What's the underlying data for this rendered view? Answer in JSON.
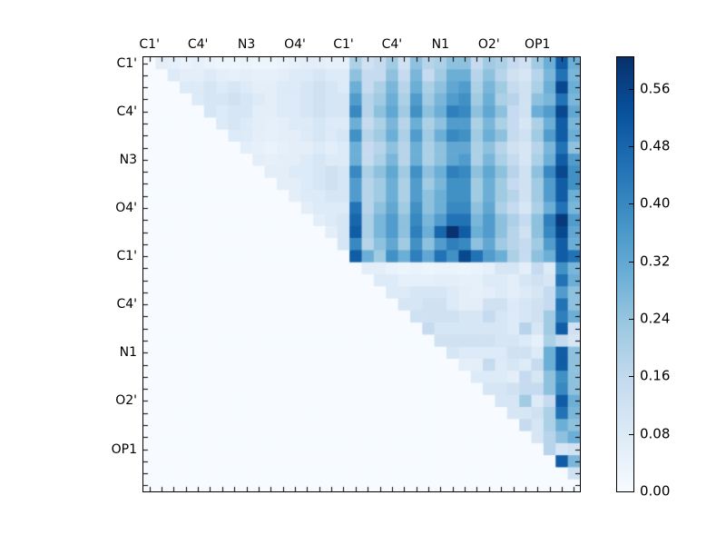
{
  "figure": {
    "background": "#ffffff"
  },
  "axes": {
    "x_tick_labels": [
      "C1'",
      "C4'",
      "N3",
      "O4'",
      "C1'",
      "C4'",
      "N1",
      "O2'",
      "OP1"
    ],
    "y_tick_labels": [
      "C1'",
      "C4'",
      "N3",
      "O4'",
      "C1'",
      "C4'",
      "N1",
      "O2'",
      "OP1"
    ],
    "label_every_n_cells": 4,
    "n_cells": 36
  },
  "colorbar": {
    "tick_labels": [
      "0.00",
      "0.08",
      "0.16",
      "0.24",
      "0.32",
      "0.40",
      "0.48",
      "0.56"
    ],
    "vmin": 0.0,
    "vmax": 0.604,
    "colormap": [
      "#f7fbff",
      "#deebf7",
      "#c6dbef",
      "#9ecae1",
      "#6baed6",
      "#4292c6",
      "#2171b5",
      "#08519c",
      "#08306b"
    ]
  },
  "chart_data": {
    "type": "heatmap",
    "title": "",
    "xlabel": "",
    "ylabel": "",
    "x_categories": [
      "C1'",
      "C4'",
      "N3",
      "O4'",
      "C1'",
      "C4'",
      "N1",
      "O2'",
      "OP1"
    ],
    "y_categories": [
      "C1'",
      "C4'",
      "N3",
      "O4'",
      "C1'",
      "C4'",
      "N1",
      "O2'",
      "OP1"
    ],
    "matrix_size": 36,
    "vmin": 0.0,
    "vmax": 0.604,
    "values": [
      [
        0,
        0.06,
        0.05,
        0.04,
        0.05,
        0.04,
        0.03,
        0.03,
        0.04,
        0.03,
        0.03,
        0.04,
        0.05,
        0.06,
        0.06,
        0.05,
        0.05,
        0.2,
        0.12,
        0.15,
        0.22,
        0.12,
        0.25,
        0.18,
        0.2,
        0.25,
        0.25,
        0.15,
        0.22,
        0.2,
        0.15,
        0.12,
        0.22,
        0.3,
        0.5,
        0.3
      ],
      [
        0,
        0,
        0.08,
        0.06,
        0.06,
        0.08,
        0.06,
        0.05,
        0.06,
        0.05,
        0.05,
        0.06,
        0.08,
        0.08,
        0.1,
        0.08,
        0.08,
        0.25,
        0.15,
        0.15,
        0.25,
        0.15,
        0.28,
        0.15,
        0.22,
        0.3,
        0.3,
        0.18,
        0.25,
        0.18,
        0.12,
        0.1,
        0.18,
        0.28,
        0.45,
        0.28
      ],
      [
        0,
        0,
        0,
        0.08,
        0.08,
        0.1,
        0.08,
        0.1,
        0.08,
        0.06,
        0.06,
        0.08,
        0.08,
        0.1,
        0.12,
        0.1,
        0.08,
        0.3,
        0.15,
        0.2,
        0.28,
        0.18,
        0.3,
        0.2,
        0.25,
        0.32,
        0.35,
        0.2,
        0.28,
        0.22,
        0.15,
        0.12,
        0.2,
        0.3,
        0.55,
        0.3
      ],
      [
        0,
        0,
        0,
        0,
        0.08,
        0.1,
        0.1,
        0.12,
        0.1,
        0.08,
        0.06,
        0.08,
        0.08,
        0.1,
        0.12,
        0.1,
        0.1,
        0.35,
        0.18,
        0.22,
        0.3,
        0.2,
        0.35,
        0.22,
        0.28,
        0.35,
        0.38,
        0.22,
        0.3,
        0.2,
        0.18,
        0.12,
        0.25,
        0.28,
        0.45,
        0.28
      ],
      [
        0,
        0,
        0,
        0,
        0,
        0.1,
        0.08,
        0.1,
        0.1,
        0.06,
        0.06,
        0.08,
        0.08,
        0.1,
        0.12,
        0.1,
        0.1,
        0.4,
        0.18,
        0.25,
        0.32,
        0.22,
        0.38,
        0.25,
        0.3,
        0.42,
        0.4,
        0.25,
        0.32,
        0.25,
        0.15,
        0.12,
        0.3,
        0.35,
        0.55,
        0.32
      ],
      [
        0,
        0,
        0,
        0,
        0,
        0,
        0.08,
        0.1,
        0.08,
        0.06,
        0.05,
        0.06,
        0.08,
        0.08,
        0.1,
        0.08,
        0.08,
        0.3,
        0.15,
        0.2,
        0.28,
        0.18,
        0.3,
        0.2,
        0.25,
        0.35,
        0.35,
        0.2,
        0.28,
        0.2,
        0.15,
        0.1,
        0.2,
        0.3,
        0.5,
        0.28
      ],
      [
        0,
        0,
        0,
        0,
        0,
        0,
        0,
        0.08,
        0.08,
        0.06,
        0.05,
        0.06,
        0.06,
        0.08,
        0.1,
        0.08,
        0.1,
        0.38,
        0.18,
        0.22,
        0.3,
        0.2,
        0.35,
        0.22,
        0.3,
        0.4,
        0.38,
        0.22,
        0.3,
        0.25,
        0.15,
        0.12,
        0.22,
        0.35,
        0.5,
        0.3
      ],
      [
        0,
        0,
        0,
        0,
        0,
        0,
        0,
        0,
        0.06,
        0.05,
        0.04,
        0.05,
        0.06,
        0.06,
        0.08,
        0.06,
        0.08,
        0.3,
        0.15,
        0.18,
        0.25,
        0.18,
        0.3,
        0.2,
        0.25,
        0.32,
        0.32,
        0.2,
        0.25,
        0.18,
        0.12,
        0.1,
        0.18,
        0.28,
        0.45,
        0.25
      ],
      [
        0,
        0,
        0,
        0,
        0,
        0,
        0,
        0,
        0,
        0.06,
        0.05,
        0.06,
        0.06,
        0.08,
        0.1,
        0.08,
        0.08,
        0.3,
        0.15,
        0.2,
        0.28,
        0.18,
        0.3,
        0.2,
        0.25,
        0.32,
        0.35,
        0.2,
        0.28,
        0.2,
        0.15,
        0.1,
        0.2,
        0.3,
        0.5,
        0.35
      ],
      [
        0,
        0,
        0,
        0,
        0,
        0,
        0,
        0,
        0,
        0,
        0.06,
        0.06,
        0.08,
        0.08,
        0.1,
        0.12,
        0.1,
        0.4,
        0.2,
        0.25,
        0.32,
        0.22,
        0.38,
        0.25,
        0.3,
        0.42,
        0.4,
        0.25,
        0.32,
        0.25,
        0.18,
        0.12,
        0.25,
        0.4,
        0.55,
        0.38
      ],
      [
        0,
        0,
        0,
        0,
        0,
        0,
        0,
        0,
        0,
        0,
        0,
        0.06,
        0.06,
        0.08,
        0.1,
        0.12,
        0.1,
        0.35,
        0.18,
        0.22,
        0.3,
        0.2,
        0.35,
        0.22,
        0.28,
        0.38,
        0.38,
        0.22,
        0.3,
        0.22,
        0.15,
        0.12,
        0.22,
        0.35,
        0.5,
        0.38
      ],
      [
        0,
        0,
        0,
        0,
        0,
        0,
        0,
        0,
        0,
        0,
        0,
        0,
        0.06,
        0.08,
        0.08,
        0.1,
        0.1,
        0.35,
        0.18,
        0.22,
        0.3,
        0.2,
        0.35,
        0.25,
        0.3,
        0.38,
        0.38,
        0.22,
        0.3,
        0.22,
        0.18,
        0.12,
        0.22,
        0.35,
        0.5,
        0.3
      ],
      [
        0,
        0,
        0,
        0,
        0,
        0,
        0,
        0,
        0,
        0,
        0,
        0,
        0,
        0.06,
        0.08,
        0.08,
        0.08,
        0.45,
        0.18,
        0.25,
        0.32,
        0.22,
        0.38,
        0.25,
        0.3,
        0.4,
        0.4,
        0.25,
        0.32,
        0.2,
        0.15,
        0.1,
        0.2,
        0.3,
        0.45,
        0.28
      ],
      [
        0,
        0,
        0,
        0,
        0,
        0,
        0,
        0,
        0,
        0,
        0,
        0,
        0,
        0,
        0.06,
        0.08,
        0.1,
        0.48,
        0.2,
        0.28,
        0.35,
        0.25,
        0.4,
        0.28,
        0.35,
        0.45,
        0.45,
        0.28,
        0.35,
        0.25,
        0.2,
        0.15,
        0.25,
        0.42,
        0.58,
        0.35
      ],
      [
        0,
        0,
        0,
        0,
        0,
        0,
        0,
        0,
        0,
        0,
        0,
        0,
        0,
        0,
        0,
        0.06,
        0.1,
        0.5,
        0.2,
        0.28,
        0.35,
        0.25,
        0.42,
        0.3,
        0.48,
        0.6,
        0.5,
        0.3,
        0.35,
        0.25,
        0.18,
        0.12,
        0.25,
        0.4,
        0.55,
        0.32
      ],
      [
        0,
        0,
        0,
        0,
        0,
        0,
        0,
        0,
        0,
        0,
        0,
        0,
        0,
        0,
        0,
        0,
        0.1,
        0.4,
        0.18,
        0.25,
        0.32,
        0.22,
        0.38,
        0.25,
        0.35,
        0.42,
        0.4,
        0.25,
        0.32,
        0.22,
        0.18,
        0.15,
        0.22,
        0.35,
        0.5,
        0.3
      ],
      [
        0,
        0,
        0,
        0,
        0,
        0,
        0,
        0,
        0,
        0,
        0,
        0,
        0,
        0,
        0,
        0,
        0,
        0.5,
        0.3,
        0.22,
        0.38,
        0.3,
        0.42,
        0.32,
        0.45,
        0.38,
        0.55,
        0.45,
        0.35,
        0.3,
        0.2,
        0.15,
        0.25,
        0.3,
        0.5,
        0.45
      ],
      [
        0,
        0,
        0,
        0,
        0,
        0,
        0,
        0,
        0,
        0,
        0,
        0,
        0,
        0,
        0,
        0,
        0,
        0,
        0.06,
        0.06,
        0.04,
        0.03,
        0.04,
        0.03,
        0.04,
        0.04,
        0.03,
        0.04,
        0.05,
        0.1,
        0.1,
        0.06,
        0.15,
        0.08,
        0.38,
        0.28
      ],
      [
        0,
        0,
        0,
        0,
        0,
        0,
        0,
        0,
        0,
        0,
        0,
        0,
        0,
        0,
        0,
        0,
        0,
        0,
        0,
        0.08,
        0.08,
        0.05,
        0.05,
        0.05,
        0.06,
        0.06,
        0.05,
        0.05,
        0.08,
        0.08,
        0.06,
        0.1,
        0.12,
        0.1,
        0.45,
        0.3
      ],
      [
        0,
        0,
        0,
        0,
        0,
        0,
        0,
        0,
        0,
        0,
        0,
        0,
        0,
        0,
        0,
        0,
        0,
        0,
        0,
        0,
        0.08,
        0.08,
        0.1,
        0.1,
        0.1,
        0.08,
        0.06,
        0.05,
        0.06,
        0.08,
        0.06,
        0.08,
        0.1,
        0.15,
        0.35,
        0.25
      ],
      [
        0,
        0,
        0,
        0,
        0,
        0,
        0,
        0,
        0,
        0,
        0,
        0,
        0,
        0,
        0,
        0,
        0,
        0,
        0,
        0,
        0,
        0.1,
        0.1,
        0.12,
        0.12,
        0.08,
        0.06,
        0.06,
        0.12,
        0.12,
        0.08,
        0.1,
        0.12,
        0.15,
        0.45,
        0.25
      ],
      [
        0,
        0,
        0,
        0,
        0,
        0,
        0,
        0,
        0,
        0,
        0,
        0,
        0,
        0,
        0,
        0,
        0,
        0,
        0,
        0,
        0,
        0,
        0.12,
        0.12,
        0.12,
        0.12,
        0.1,
        0.1,
        0.15,
        0.1,
        0.08,
        0.1,
        0.12,
        0.22,
        0.42,
        0.3
      ],
      [
        0,
        0,
        0,
        0,
        0,
        0,
        0,
        0,
        0,
        0,
        0,
        0,
        0,
        0,
        0,
        0,
        0,
        0,
        0,
        0,
        0,
        0,
        0,
        0.15,
        0.1,
        0.1,
        0.1,
        0.1,
        0.1,
        0.1,
        0.08,
        0.18,
        0.1,
        0.22,
        0.5,
        0.12
      ],
      [
        0,
        0,
        0,
        0,
        0,
        0,
        0,
        0,
        0,
        0,
        0,
        0,
        0,
        0,
        0,
        0,
        0,
        0,
        0,
        0,
        0,
        0,
        0,
        0,
        0.12,
        0.12,
        0.12,
        0.12,
        0.12,
        0.1,
        0.1,
        0.08,
        0.05,
        0.2,
        0.15,
        0.1
      ],
      [
        0,
        0,
        0,
        0,
        0,
        0,
        0,
        0,
        0,
        0,
        0,
        0,
        0,
        0,
        0,
        0,
        0,
        0,
        0,
        0,
        0,
        0,
        0,
        0,
        0,
        0.1,
        0.08,
        0.08,
        0.08,
        0.08,
        0.12,
        0.12,
        0.08,
        0.3,
        0.5,
        0.25
      ],
      [
        0,
        0,
        0,
        0,
        0,
        0,
        0,
        0,
        0,
        0,
        0,
        0,
        0,
        0,
        0,
        0,
        0,
        0,
        0,
        0,
        0,
        0,
        0,
        0,
        0,
        0,
        0.06,
        0.06,
        0.15,
        0.08,
        0.1,
        0.08,
        0.15,
        0.3,
        0.5,
        0.25
      ],
      [
        0,
        0,
        0,
        0,
        0,
        0,
        0,
        0,
        0,
        0,
        0,
        0,
        0,
        0,
        0,
        0,
        0,
        0,
        0,
        0,
        0,
        0,
        0,
        0,
        0,
        0,
        0,
        0.08,
        0.08,
        0.08,
        0.06,
        0.15,
        0.1,
        0.25,
        0.38,
        0.25
      ],
      [
        0,
        0,
        0,
        0,
        0,
        0,
        0,
        0,
        0,
        0,
        0,
        0,
        0,
        0,
        0,
        0,
        0,
        0,
        0,
        0,
        0,
        0,
        0,
        0,
        0,
        0,
        0,
        0,
        0.1,
        0.1,
        0.12,
        0.15,
        0.15,
        0.25,
        0.4,
        0.25
      ],
      [
        0,
        0,
        0,
        0,
        0,
        0,
        0,
        0,
        0,
        0,
        0,
        0,
        0,
        0,
        0,
        0,
        0,
        0,
        0,
        0,
        0,
        0,
        0,
        0,
        0,
        0,
        0,
        0,
        0,
        0.1,
        0.1,
        0.22,
        0.08,
        0.15,
        0.5,
        0.3
      ],
      [
        0,
        0,
        0,
        0,
        0,
        0,
        0,
        0,
        0,
        0,
        0,
        0,
        0,
        0,
        0,
        0,
        0,
        0,
        0,
        0,
        0,
        0,
        0,
        0,
        0,
        0,
        0,
        0,
        0,
        0,
        0.1,
        0.1,
        0.12,
        0.2,
        0.45,
        0.28
      ],
      [
        0,
        0,
        0,
        0,
        0,
        0,
        0,
        0,
        0,
        0,
        0,
        0,
        0,
        0,
        0,
        0,
        0,
        0,
        0,
        0,
        0,
        0,
        0,
        0,
        0,
        0,
        0,
        0,
        0,
        0,
        0,
        0.15,
        0.1,
        0.2,
        0.3,
        0.25
      ],
      [
        0,
        0,
        0,
        0,
        0,
        0,
        0,
        0,
        0,
        0,
        0,
        0,
        0,
        0,
        0,
        0,
        0,
        0,
        0,
        0,
        0,
        0,
        0,
        0,
        0,
        0,
        0,
        0,
        0,
        0,
        0,
        0,
        0.1,
        0.18,
        0.25,
        0.3
      ],
      [
        0,
        0,
        0,
        0,
        0,
        0,
        0,
        0,
        0,
        0,
        0,
        0,
        0,
        0,
        0,
        0,
        0,
        0,
        0,
        0,
        0,
        0,
        0,
        0,
        0,
        0,
        0,
        0,
        0,
        0,
        0,
        0,
        0,
        0.18,
        0.1,
        0.12
      ],
      [
        0,
        0,
        0,
        0,
        0,
        0,
        0,
        0,
        0,
        0,
        0,
        0,
        0,
        0,
        0,
        0,
        0,
        0,
        0,
        0,
        0,
        0,
        0,
        0,
        0,
        0,
        0,
        0,
        0,
        0,
        0,
        0,
        0,
        0,
        0.5,
        0.28
      ],
      [
        0,
        0,
        0,
        0,
        0,
        0,
        0,
        0,
        0,
        0,
        0,
        0,
        0,
        0,
        0,
        0,
        0,
        0,
        0,
        0,
        0,
        0,
        0,
        0,
        0,
        0,
        0,
        0,
        0,
        0,
        0,
        0,
        0,
        0,
        0,
        0.12
      ],
      [
        0,
        0,
        0,
        0,
        0,
        0,
        0,
        0,
        0,
        0,
        0,
        0,
        0,
        0,
        0,
        0,
        0,
        0,
        0,
        0,
        0,
        0,
        0,
        0,
        0,
        0,
        0,
        0,
        0,
        0,
        0,
        0,
        0,
        0,
        0,
        0
      ]
    ]
  }
}
